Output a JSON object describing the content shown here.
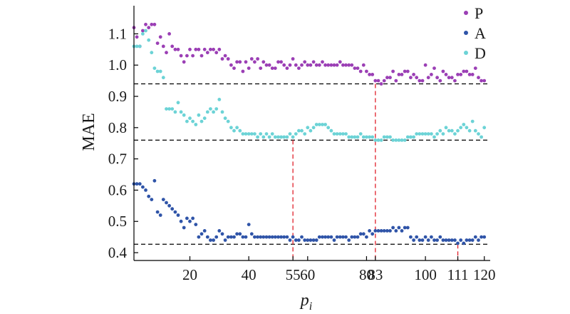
{
  "chart_data": {
    "type": "scatter",
    "xlabel": "p",
    "xlabel_sub": "i",
    "ylabel": "MAE",
    "xlim": [
      1,
      122
    ],
    "ylim": [
      0.375,
      1.19
    ],
    "xticks": [
      20,
      40,
      55,
      60,
      80,
      83,
      100,
      111,
      120
    ],
    "yticks": [
      0.4,
      0.5,
      0.6,
      0.7,
      0.8,
      0.9,
      1.0,
      1.1
    ],
    "ytick_labels": [
      "0.4",
      "0.5",
      "0.6",
      "0.7",
      "0.8",
      "0.9",
      "1.0",
      "1.1"
    ],
    "grid": false,
    "legend_position": "top-right",
    "series": [
      {
        "name": "P",
        "color": "#9b3fb5",
        "x": [
          1,
          2,
          3,
          4,
          5,
          6,
          7,
          8,
          9,
          10,
          11,
          12,
          13,
          14,
          15,
          16,
          17,
          18,
          19,
          20,
          21,
          22,
          23,
          24,
          25,
          26,
          27,
          28,
          29,
          30,
          31,
          32,
          33,
          34,
          35,
          36,
          37,
          38,
          39,
          40,
          41,
          42,
          43,
          44,
          45,
          46,
          47,
          48,
          49,
          50,
          51,
          52,
          53,
          54,
          55,
          56,
          57,
          58,
          59,
          60,
          61,
          62,
          63,
          64,
          65,
          66,
          67,
          68,
          69,
          70,
          71,
          72,
          73,
          74,
          75,
          76,
          77,
          78,
          79,
          80,
          81,
          82,
          83,
          84,
          85,
          86,
          87,
          88,
          89,
          90,
          91,
          92,
          93,
          94,
          95,
          96,
          97,
          98,
          99,
          100,
          101,
          102,
          103,
          104,
          105,
          106,
          107,
          108,
          109,
          110,
          111,
          112,
          113,
          114,
          115,
          116,
          117,
          118,
          119,
          120
        ],
        "y": [
          1.12,
          1.09,
          1.06,
          1.11,
          1.13,
          1.12,
          1.13,
          1.13,
          1.07,
          1.09,
          1.06,
          1.04,
          1.1,
          1.06,
          1.05,
          1.05,
          1.03,
          1.01,
          1.03,
          1.05,
          1.03,
          1.05,
          1.05,
          1.03,
          1.05,
          1.04,
          1.05,
          1.05,
          1.04,
          1.05,
          1.02,
          1.03,
          1.02,
          1.0,
          0.99,
          1.01,
          1.01,
          0.98,
          1.01,
          0.99,
          1.02,
          1.01,
          1.02,
          0.99,
          1.01,
          1.0,
          1.0,
          0.99,
          0.99,
          1.01,
          1.01,
          1.0,
          0.99,
          1.0,
          1.02,
          1.0,
          0.99,
          1.0,
          1.01,
          1.0,
          1.0,
          1.01,
          1.0,
          1.0,
          1.01,
          1.0,
          1.0,
          1.0,
          1.0,
          1.0,
          1.01,
          1.0,
          1.0,
          1.0,
          1.0,
          0.99,
          0.99,
          0.98,
          1.0,
          0.98,
          0.97,
          0.97,
          0.95,
          0.95,
          0.94,
          0.95,
          0.96,
          0.96,
          0.98,
          0.95,
          0.97,
          0.97,
          0.98,
          0.98,
          0.96,
          0.97,
          0.96,
          0.95,
          0.95,
          1.0,
          0.96,
          0.97,
          0.99,
          0.96,
          0.95,
          0.98,
          0.97,
          0.96,
          0.96,
          0.95,
          0.97,
          0.97,
          0.98,
          0.98,
          0.97,
          0.97,
          0.99,
          0.96,
          0.95,
          0.95
        ]
      },
      {
        "name": "A",
        "color": "#2f54a8",
        "x": [
          1,
          2,
          3,
          4,
          5,
          6,
          7,
          8,
          9,
          10,
          11,
          12,
          13,
          14,
          15,
          16,
          17,
          18,
          19,
          20,
          21,
          22,
          23,
          24,
          25,
          26,
          27,
          28,
          29,
          30,
          31,
          32,
          33,
          34,
          35,
          36,
          37,
          38,
          39,
          40,
          41,
          42,
          43,
          44,
          45,
          46,
          47,
          48,
          49,
          50,
          51,
          52,
          53,
          54,
          55,
          56,
          57,
          58,
          59,
          60,
          61,
          62,
          63,
          64,
          65,
          66,
          67,
          68,
          69,
          70,
          71,
          72,
          73,
          74,
          75,
          76,
          77,
          78,
          79,
          80,
          81,
          82,
          83,
          84,
          85,
          86,
          87,
          88,
          89,
          90,
          91,
          92,
          93,
          94,
          95,
          96,
          97,
          98,
          99,
          100,
          101,
          102,
          103,
          104,
          105,
          106,
          107,
          108,
          109,
          110,
          111,
          112,
          113,
          114,
          115,
          116,
          117,
          118,
          119,
          120
        ],
        "y": [
          0.62,
          0.62,
          0.62,
          0.61,
          0.6,
          0.58,
          0.57,
          0.63,
          0.53,
          0.52,
          0.57,
          0.56,
          0.55,
          0.54,
          0.53,
          0.52,
          0.5,
          0.48,
          0.51,
          0.5,
          0.51,
          0.49,
          0.45,
          0.46,
          0.47,
          0.45,
          0.44,
          0.44,
          0.45,
          0.47,
          0.46,
          0.44,
          0.45,
          0.45,
          0.45,
          0.46,
          0.46,
          0.45,
          0.45,
          0.49,
          0.46,
          0.45,
          0.45,
          0.45,
          0.45,
          0.45,
          0.45,
          0.45,
          0.45,
          0.45,
          0.45,
          0.45,
          0.45,
          0.44,
          0.45,
          0.44,
          0.44,
          0.45,
          0.44,
          0.44,
          0.44,
          0.44,
          0.44,
          0.45,
          0.45,
          0.45,
          0.45,
          0.45,
          0.44,
          0.45,
          0.45,
          0.45,
          0.45,
          0.44,
          0.45,
          0.45,
          0.45,
          0.46,
          0.46,
          0.45,
          0.47,
          0.46,
          0.47,
          0.47,
          0.47,
          0.47,
          0.47,
          0.47,
          0.48,
          0.47,
          0.48,
          0.47,
          0.48,
          0.48,
          0.45,
          0.44,
          0.45,
          0.44,
          0.44,
          0.45,
          0.44,
          0.45,
          0.44,
          0.44,
          0.45,
          0.44,
          0.44,
          0.44,
          0.44,
          0.44,
          0.43,
          0.44,
          0.43,
          0.44,
          0.44,
          0.44,
          0.45,
          0.44,
          0.45,
          0.45
        ]
      },
      {
        "name": "D",
        "color": "#6cd3d6",
        "x": [
          1,
          2,
          3,
          4,
          5,
          6,
          7,
          8,
          9,
          10,
          11,
          12,
          13,
          14,
          15,
          16,
          17,
          18,
          19,
          20,
          21,
          22,
          23,
          24,
          25,
          26,
          27,
          28,
          29,
          30,
          31,
          32,
          33,
          34,
          35,
          36,
          37,
          38,
          39,
          40,
          41,
          42,
          43,
          44,
          45,
          46,
          47,
          48,
          49,
          50,
          51,
          52,
          53,
          54,
          55,
          56,
          57,
          58,
          59,
          60,
          61,
          62,
          63,
          64,
          65,
          66,
          67,
          68,
          69,
          70,
          71,
          72,
          73,
          74,
          75,
          76,
          77,
          78,
          79,
          80,
          81,
          82,
          83,
          84,
          85,
          86,
          87,
          88,
          89,
          90,
          91,
          92,
          93,
          94,
          95,
          96,
          97,
          98,
          99,
          100,
          101,
          102,
          103,
          104,
          105,
          106,
          107,
          108,
          109,
          110,
          111,
          112,
          113,
          114,
          115,
          116,
          117,
          118,
          119,
          120
        ],
        "y": [
          1.06,
          1.06,
          1.06,
          1.1,
          1.11,
          1.08,
          1.04,
          0.99,
          0.98,
          0.98,
          0.96,
          0.86,
          0.86,
          0.86,
          0.85,
          0.88,
          0.85,
          0.84,
          0.82,
          0.83,
          0.82,
          0.81,
          0.84,
          0.82,
          0.83,
          0.85,
          0.86,
          0.85,
          0.86,
          0.89,
          0.85,
          0.83,
          0.82,
          0.8,
          0.79,
          0.8,
          0.79,
          0.78,
          0.78,
          0.78,
          0.78,
          0.78,
          0.77,
          0.78,
          0.77,
          0.78,
          0.77,
          0.78,
          0.77,
          0.77,
          0.77,
          0.77,
          0.77,
          0.78,
          0.77,
          0.78,
          0.79,
          0.79,
          0.78,
          0.8,
          0.79,
          0.8,
          0.81,
          0.81,
          0.81,
          0.81,
          0.8,
          0.79,
          0.78,
          0.78,
          0.78,
          0.78,
          0.78,
          0.77,
          0.77,
          0.77,
          0.77,
          0.78,
          0.77,
          0.77,
          0.77,
          0.77,
          0.76,
          0.76,
          0.76,
          0.77,
          0.77,
          0.77,
          0.76,
          0.76,
          0.76,
          0.76,
          0.76,
          0.77,
          0.77,
          0.77,
          0.78,
          0.78,
          0.78,
          0.78,
          0.78,
          0.78,
          0.77,
          0.78,
          0.79,
          0.78,
          0.8,
          0.79,
          0.79,
          0.78,
          0.79,
          0.8,
          0.81,
          0.8,
          0.79,
          0.82,
          0.79,
          0.78,
          0.77,
          0.8
        ]
      }
    ],
    "reference_lines": {
      "horizontal": [
        0.94,
        0.76,
        0.427
      ],
      "vertical": [
        {
          "x": 55,
          "y_top": 0.76
        },
        {
          "x": 83,
          "y_top": 0.94
        },
        {
          "x": 111,
          "y_top": 0.427
        }
      ],
      "horizontal_color": "#000000",
      "vertical_color": "#e0202a"
    }
  }
}
